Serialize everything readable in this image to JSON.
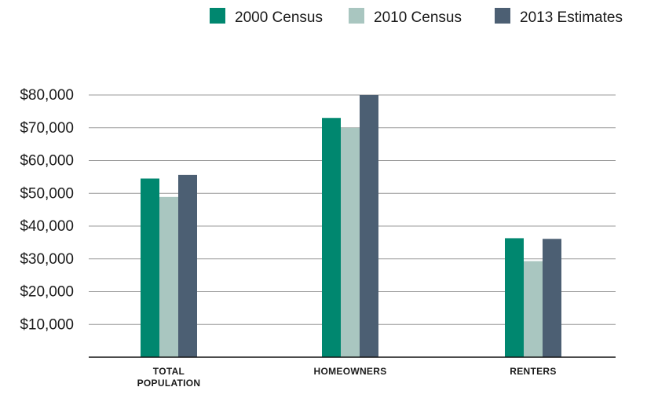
{
  "chart_data": {
    "type": "bar",
    "categories": [
      "TOTAL POPULATION",
      "HOMEOWNERS",
      "RENTERS"
    ],
    "category_label_lines": [
      [
        "TOTAL",
        "POPULATION"
      ],
      [
        "HOMEOWNERS"
      ],
      [
        "RENTERS"
      ]
    ],
    "series": [
      {
        "name": "2000 Census",
        "color": "#00876f",
        "values": [
          54500,
          73000,
          36300
        ]
      },
      {
        "name": "2010 Census",
        "color": "#a9c6c0",
        "values": [
          48900,
          70000,
          29300
        ]
      },
      {
        "name": "2013 Estimates",
        "color": "#4c5f73",
        "values": [
          55600,
          80000,
          36100
        ]
      }
    ],
    "ylim": [
      0,
      80000
    ],
    "yticks": [
      {
        "value": 10000,
        "label": "$10,000"
      },
      {
        "value": 20000,
        "label": "$20,000"
      },
      {
        "value": 30000,
        "label": "$30,000"
      },
      {
        "value": 40000,
        "label": "$40,000"
      },
      {
        "value": 50000,
        "label": "$50,000"
      },
      {
        "value": 60000,
        "label": "$60,000"
      },
      {
        "value": 70000,
        "label": "$70,000"
      },
      {
        "value": 80000,
        "label": "$80,000"
      }
    ],
    "grid": true,
    "legend_position": "top-right",
    "title": "",
    "xlabel": "",
    "ylabel": ""
  }
}
